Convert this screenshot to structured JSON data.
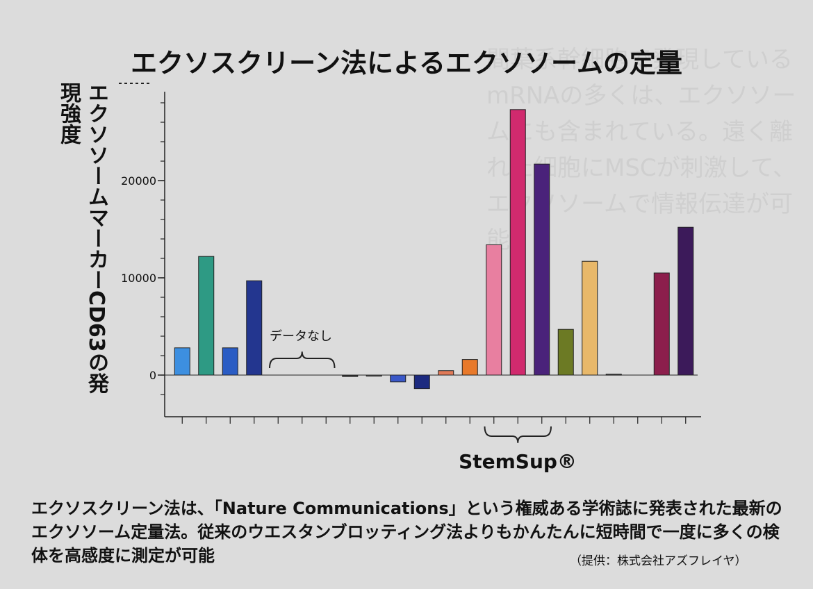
{
  "background_text": "間葉系幹細胞で発現しているmRNAの多くは、エクソソームにも含まれている。遠く離れた細胞にMSCが刺激して、エクソソームで情報伝達が可能",
  "chart_data": {
    "type": "bar",
    "title": "エクソスクリーン法によるエクソソームの定量",
    "ylabel": "エクソソームマーカーCD63の発現強度",
    "ylim": [
      -2500,
      30000
    ],
    "yticks": [
      0,
      10000,
      20000
    ],
    "ytick_labels": [
      "0",
      "10000",
      "20000"
    ],
    "y_axis_top_broken": true,
    "grid": false,
    "num_slots": 22,
    "bars": [
      {
        "slot": 0,
        "value": 2800,
        "color": "#3d8fe0"
      },
      {
        "slot": 1,
        "value": 12200,
        "color": "#2e9a84"
      },
      {
        "slot": 2,
        "value": 2800,
        "color": "#2a5cc4"
      },
      {
        "slot": 3,
        "value": 9700,
        "color": "#23368f"
      },
      {
        "slot": 7,
        "value": -150,
        "color": "#333333"
      },
      {
        "slot": 8,
        "value": -60,
        "color": "#555555"
      },
      {
        "slot": 9,
        "value": -700,
        "color": "#3a58c8"
      },
      {
        "slot": 10,
        "value": -1400,
        "color": "#1c2a80"
      },
      {
        "slot": 11,
        "value": 450,
        "color": "#e07a58"
      },
      {
        "slot": 12,
        "value": 1600,
        "color": "#e8792a"
      },
      {
        "slot": 13,
        "value": 13400,
        "color": "#e87fa0"
      },
      {
        "slot": 14,
        "value": 27300,
        "color": "#d12a6e"
      },
      {
        "slot": 15,
        "value": 21700,
        "color": "#4a227a"
      },
      {
        "slot": 16,
        "value": 4700,
        "color": "#6c7a24"
      },
      {
        "slot": 17,
        "value": 11700,
        "color": "#e8b86a"
      },
      {
        "slot": 18,
        "value": 100,
        "color": "#555555"
      },
      {
        "slot": 20,
        "value": 10500,
        "color": "#8c1e4c"
      },
      {
        "slot": 21,
        "value": 15200,
        "color": "#3c1a5a"
      }
    ],
    "annotations": {
      "no_data": "データなし",
      "no_data_slots": [
        4,
        6
      ],
      "group_label": "StemSup®",
      "group_slots": [
        13,
        15
      ]
    }
  },
  "caption": "エクソスクリーン法は、「Nature Communications」という権威ある学術誌に発表された最新のエクソソーム定量法。従来のウエスタンブロッティング法よりもかんたんに短時間で一度に多くの検体を高感度に測定が可能",
  "credit": "（提供：株式会社アズフレイヤ）"
}
